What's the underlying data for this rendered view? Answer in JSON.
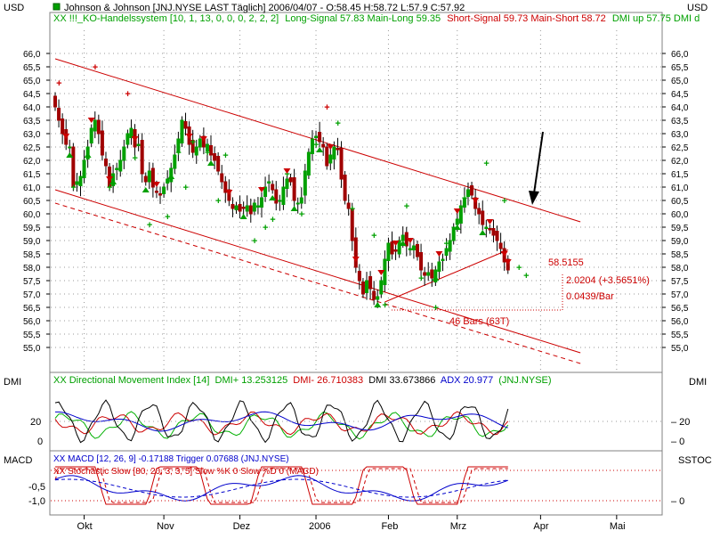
{
  "app": {
    "unit_label": "USD",
    "header_line1": "Johnson & Johnson [JNJ.NYSE LAST Täglich] 2006/04/07 - O:58.45 H:58.72 L:57.9 C:57.92",
    "header_line2_prefix": "XX !!!_KO-Handelssystem [10, 1, 13, 0, 0, 0, 2, 2, 2]",
    "header_line2_long": "Long-Signal 57.83 Main-Long 59.35",
    "header_line2_short": "Short-Signal 59.73 Main-Short 58.72",
    "header_line2_dmi": "DMI up 57.75 DMI d"
  },
  "colors": {
    "candle_up": "#00a000",
    "candle_down": "#a00000",
    "channel_line": "#cc0000",
    "dmi_plus": "#00b000",
    "dmi_minus": "#cc0000",
    "dmi_line": "#000000",
    "adx": "#0000cc",
    "macd": "#0000cc",
    "stoch": "#cc0000",
    "grid_dot": "#999999",
    "panel_border": "#808080"
  },
  "annotations": {
    "channel_price": "58.5155",
    "move_text": "2.0204 (+3.5651%)",
    "per_bar": "0.0439/Bar",
    "bars_count": "46 Bars (63T)"
  },
  "panels": {
    "dmi_label": "DMI",
    "dmi_legend_name": "XX Directional Movement Index [14]",
    "dmi_plus_text": "DMI+ 13.253125",
    "dmi_minus_text": "DMI- 26.710383",
    "dmi_text": "DMI 33.673866",
    "adx_text": "ADX 20.977",
    "dmi_symbol": "(JNJ.NYSE)",
    "macd_label": "MACD",
    "stoch_label": "SSTOC",
    "macd_legend": "XX MACD [12, 26, 9] -0.17188 Trigger 0.07688 (JNJ.NYSE)",
    "stoch_legend": "XX Stochastic Slow [80, 20, 3, 3, 5] Slow %K 0 Slow %D 0 (MACD)"
  },
  "chart_data": {
    "type": "candlestick",
    "title": "Johnson & Johnson [JNJ.NYSE LAST Täglich]",
    "ylim": [
      54.6,
      66.3
    ],
    "yticks": [
      55.0,
      55.5,
      56.0,
      56.5,
      57.0,
      57.5,
      58.0,
      58.5,
      59.0,
      59.5,
      60.0,
      60.5,
      61.0,
      61.5,
      62.0,
      62.5,
      63.0,
      63.5,
      64.0,
      64.5,
      65.0,
      65.5,
      66.0
    ],
    "ytick_labels": [
      "55,0",
      "55,5",
      "56,0",
      "56,5",
      "57,0",
      "57,5",
      "58,0",
      "58,5",
      "59,0",
      "59,5",
      "60,0",
      "60,5",
      "61,0",
      "61,5",
      "62,0",
      "62,5",
      "63,0",
      "63,5",
      "64,0",
      "64,5",
      "65,0",
      "65,5",
      "66,0"
    ],
    "xticks": [
      {
        "label": "Okt",
        "bar": 8
      },
      {
        "label": "Nov",
        "bar": 30
      },
      {
        "label": "Dez",
        "bar": 51
      },
      {
        "label": "2006",
        "bar": 72
      },
      {
        "label": "Feb",
        "bar": 92
      },
      {
        "label": "Mrz",
        "bar": 111
      },
      {
        "label": "Apr",
        "bar": 134
      },
      {
        "label": "Mai",
        "bar": 155
      }
    ],
    "closes": [
      64.0,
      63.5,
      63.0,
      62.6,
      62.5,
      61.0,
      61.2,
      61.4,
      62.0,
      62.5,
      63.2,
      63.5,
      63.0,
      62.2,
      61.8,
      61.0,
      61.5,
      61.7,
      62.0,
      62.5,
      63.0,
      63.2,
      62.5,
      62.6,
      61.5,
      61.2,
      61.6,
      61.0,
      60.8,
      60.7,
      61.0,
      61.3,
      61.7,
      62.2,
      62.8,
      63.5,
      63.2,
      62.6,
      62.3,
      62.5,
      62.8,
      62.5,
      62.6,
      62.2,
      62.0,
      61.6,
      61.2,
      60.8,
      60.5,
      60.2,
      60.3,
      60.1,
      60.2,
      60.3,
      60.0,
      60.4,
      60.3,
      60.6,
      61.0,
      61.2,
      60.9,
      60.4,
      60.5,
      61.0,
      61.3,
      61.2,
      60.5,
      60.4,
      60.6,
      61.6,
      62.3,
      62.8,
      62.9,
      62.7,
      62.5,
      61.8,
      62.2,
      62.5,
      62.4,
      61.3,
      60.5,
      60.2,
      59.0,
      58.0,
      57.5,
      57.0,
      57.5,
      57.2,
      56.8,
      56.9,
      57.5,
      58.3,
      58.9,
      58.5,
      58.6,
      59.0,
      59.2,
      58.8,
      58.7,
      58.8,
      58.4,
      57.9,
      57.7,
      57.8,
      57.6,
      57.9,
      58.2,
      58.3,
      58.7,
      59.0,
      59.5,
      59.8,
      60.3,
      60.6,
      60.9,
      60.7,
      60.2,
      60.0,
      59.6,
      59.5,
      59.4,
      59.2,
      59.0,
      58.7,
      58.2,
      57.9
    ],
    "long_signals": [
      [
        1,
        64.9
      ],
      [
        5,
        61.0
      ],
      [
        11,
        65.5
      ],
      [
        15,
        61.0
      ],
      [
        20,
        64.5
      ],
      [
        22,
        62.1
      ],
      [
        26,
        59.6
      ],
      [
        31,
        59.9
      ],
      [
        34,
        62.3
      ],
      [
        36,
        61.0
      ],
      [
        38,
        62.7
      ],
      [
        42,
        62.3
      ],
      [
        45,
        60.5
      ],
      [
        47,
        62.2
      ],
      [
        55,
        59.0
      ],
      [
        58,
        59.5
      ],
      [
        60,
        59.8
      ],
      [
        64,
        61.5
      ],
      [
        68,
        60.0
      ],
      [
        72,
        62.6
      ],
      [
        75,
        64.0
      ],
      [
        78,
        63.4
      ],
      [
        82,
        60.2
      ],
      [
        88,
        59.2
      ],
      [
        91,
        56.6
      ],
      [
        97,
        60.3
      ],
      [
        101,
        57.6
      ],
      [
        105,
        56.5
      ],
      [
        108,
        58.9
      ],
      [
        113,
        60.6
      ],
      [
        119,
        61.9
      ],
      [
        124,
        60.5
      ],
      [
        128,
        58.0
      ],
      [
        130,
        57.7
      ]
    ],
    "buy_markers": [
      4,
      9,
      16,
      25,
      32,
      43,
      52,
      60,
      66,
      73,
      89,
      96,
      105,
      111,
      118
    ],
    "sell_markers": [
      3,
      10,
      15,
      22,
      28,
      37,
      41,
      48,
      57,
      64,
      76,
      83,
      90,
      94,
      98,
      106,
      111,
      116,
      120,
      124,
      125,
      126,
      127,
      128,
      129
    ],
    "channel": {
      "upper": [
        [
          0,
          65.8
        ],
        [
          145,
          59.7
        ]
      ],
      "lower": [
        [
          0,
          60.9
        ],
        [
          145,
          54.8
        ]
      ],
      "mid_dashed": [
        [
          0,
          60.4
        ],
        [
          145,
          54.4
        ]
      ],
      "trend": [
        [
          91,
          56.7
        ],
        [
          125,
          58.65
        ]
      ]
    },
    "arrow_at_bar": 125
  }
}
